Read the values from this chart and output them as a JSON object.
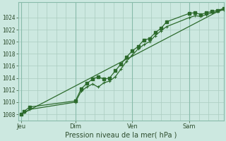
{
  "xlabel": "Pression niveau de la mer( hPa )",
  "background_color": "#cce8e0",
  "grid_color": "#aaccbf",
  "grid_major_color": "#88bbaa",
  "line_color": "#2d6b2d",
  "xlim": [
    0,
    3.6
  ],
  "ylim": [
    1007.0,
    1026.5
  ],
  "yticks": [
    1008,
    1010,
    1012,
    1014,
    1016,
    1018,
    1020,
    1022,
    1024
  ],
  "day_labels": [
    "Jeu",
    "Dim",
    "Ven",
    "Sam"
  ],
  "day_positions": [
    0.05,
    1.0,
    2.0,
    3.0
  ],
  "minor_x_step": 0.1667,
  "series1_x": [
    0.05,
    0.1,
    0.2,
    1.0,
    1.1,
    1.2,
    1.3,
    1.4,
    1.5,
    1.6,
    1.7,
    1.8,
    1.9,
    2.0,
    2.1,
    2.2,
    2.3,
    2.4,
    2.5,
    2.6,
    3.0,
    3.1,
    3.2,
    3.3,
    3.4,
    3.5,
    3.6
  ],
  "series1_y": [
    1008.0,
    1008.5,
    1009.2,
    1010.2,
    1012.2,
    1013.1,
    1013.8,
    1014.2,
    1013.8,
    1014.0,
    1015.2,
    1016.3,
    1017.5,
    1018.5,
    1019.2,
    1020.3,
    1020.5,
    1021.5,
    1022.2,
    1023.3,
    1024.7,
    1024.8,
    1024.5,
    1024.8,
    1025.0,
    1025.2,
    1025.5
  ],
  "series2_x": [
    0.05,
    0.1,
    0.2,
    1.0,
    1.1,
    1.2,
    1.3,
    1.4,
    1.5,
    1.6,
    1.7,
    1.8,
    1.9,
    2.0,
    2.1,
    2.2,
    2.3,
    2.4,
    2.5,
    2.6,
    3.0,
    3.1,
    3.2,
    3.3,
    3.4,
    3.5,
    3.6
  ],
  "series2_y": [
    1008.0,
    1008.3,
    1008.8,
    1010.0,
    1011.8,
    1012.5,
    1013.0,
    1012.5,
    1013.2,
    1013.5,
    1014.2,
    1015.5,
    1016.8,
    1017.8,
    1018.8,
    1019.5,
    1020.0,
    1021.0,
    1021.8,
    1022.5,
    1024.0,
    1024.3,
    1024.2,
    1024.5,
    1024.8,
    1025.0,
    1025.3
  ],
  "series3_x": [
    0.05,
    3.6
  ],
  "series3_y": [
    1008.0,
    1025.5
  ]
}
